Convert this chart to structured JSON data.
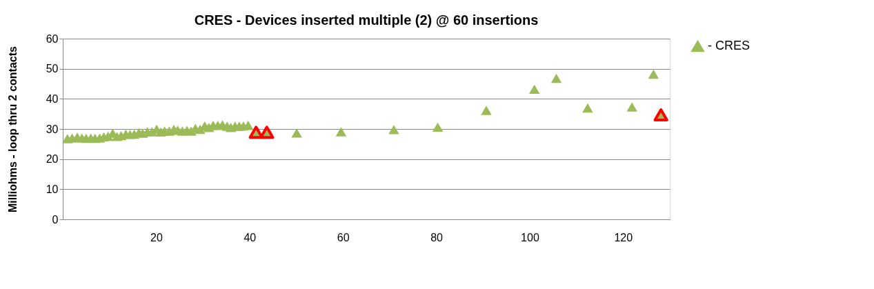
{
  "chart_data": {
    "type": "scatter",
    "title": "CRES - Devices inserted multiple (2) @ 60 insertions",
    "ylabel": "Milliohms - loop thru 2 contacts",
    "xlim": [
      0,
      130
    ],
    "xticks": [
      20,
      40,
      60,
      80,
      100,
      120
    ],
    "ylim": [
      0,
      60
    ],
    "yticks": [
      0,
      10,
      20,
      30,
      40,
      50,
      60
    ],
    "grid": "y",
    "legend": "right",
    "marker": "triangle",
    "series": [
      {
        "name": "- CRES",
        "color": "#9bbb59",
        "x": [
          1.0,
          2.0,
          3.1,
          4.1,
          5.0,
          6.0,
          6.9,
          7.9,
          8.8,
          9.7,
          10.7,
          11.6,
          12.5,
          13.5,
          14.4,
          15.3,
          16.3,
          17.1,
          18.1,
          19.1,
          20.1,
          21.0,
          21.8,
          22.8,
          23.8,
          24.6,
          25.6,
          26.6,
          27.5,
          28.4,
          29.4,
          30.4,
          31.3,
          32.2,
          33.2,
          34.2,
          35.2,
          36.0,
          36.9,
          37.8,
          38.7,
          39.7,
          50.1,
          59.6,
          70.9,
          80.3,
          90.7,
          101.0,
          105.7,
          112.4,
          121.9,
          126.5
        ],
        "values": [
          26.8,
          27.0,
          27.3,
          27.0,
          26.9,
          27.0,
          26.9,
          27.0,
          27.4,
          27.6,
          28.6,
          27.5,
          27.8,
          28.3,
          28.2,
          28.3,
          28.8,
          28.6,
          29.1,
          29.1,
          29.9,
          29.0,
          29.3,
          29.3,
          29.9,
          29.6,
          29.3,
          29.5,
          29.3,
          30.2,
          29.9,
          31.0,
          30.5,
          31.2,
          31.2,
          31.4,
          30.9,
          30.5,
          30.9,
          30.9,
          31.0,
          31.2,
          28.7,
          29.1,
          29.8,
          30.6,
          36.2,
          43.2,
          46.8,
          37.0,
          37.3,
          48.2
        ]
      },
      {
        "color": "#ff0000",
        "x": [
          41.4,
          43.7,
          128.1
        ],
        "values": [
          28.9,
          28.9,
          34.7
        ]
      }
    ]
  }
}
